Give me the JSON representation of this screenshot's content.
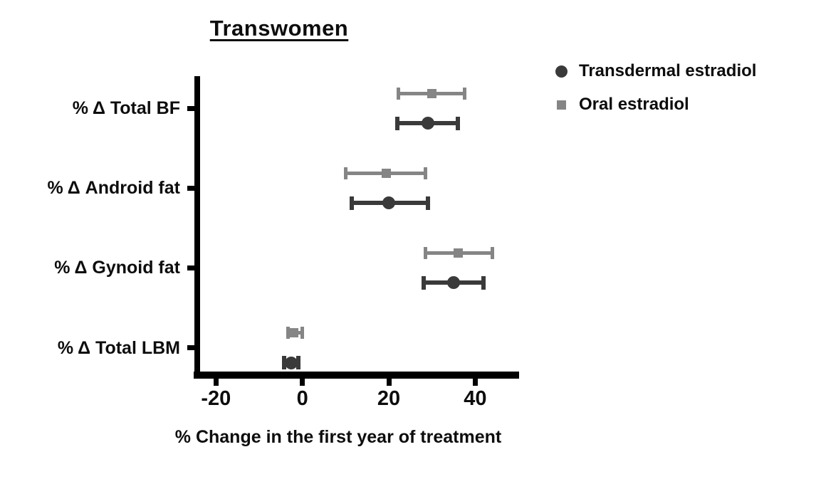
{
  "title": "Transwomen",
  "chart_data": {
    "type": "scatter",
    "subtype": "horizontal-forest-plot-with-error-bars",
    "title": "Transwomen",
    "xlabel": "% Change in the first year of treatment",
    "ylabel": "",
    "xlim": [
      -25,
      50
    ],
    "xticks": [
      -20,
      0,
      20,
      40
    ],
    "grid": false,
    "legend_position": "top-right",
    "categories": [
      "% Δ Total BF",
      "% Δ Android fat",
      "% Δ Gynoid fat",
      "% Δ Total LBM"
    ],
    "series": [
      {
        "name": "Transdermal estradiol",
        "marker": "circle",
        "color": "#3a3a3a",
        "values": [
          29,
          20,
          35,
          -2.6
        ],
        "ci_low": [
          22,
          11.5,
          28,
          -4.3
        ],
        "ci_high": [
          36,
          29,
          42,
          -1
        ]
      },
      {
        "name": "Oral estradiol",
        "marker": "square",
        "color": "#858585",
        "values": [
          30,
          19.5,
          36,
          -2
        ],
        "ci_low": [
          22.3,
          10,
          28.5,
          -3.3
        ],
        "ci_high": [
          37.5,
          28.5,
          44,
          0
        ]
      }
    ]
  }
}
